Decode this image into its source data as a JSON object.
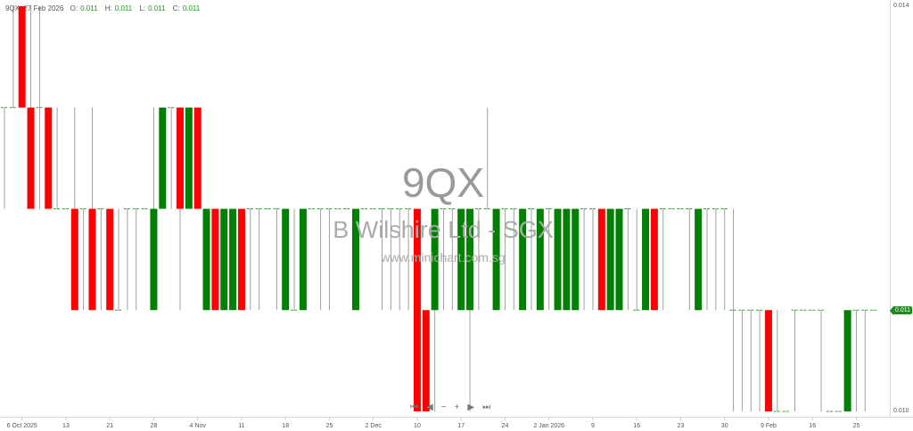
{
  "header": {
    "symbol": "9QX",
    "date": "27 Feb 2026",
    "o_label": "O:",
    "o": "0.011",
    "h_label": "H:",
    "h": "0.011",
    "l_label": "L:",
    "l": "0.011",
    "c_label": "C:",
    "c": "0.011"
  },
  "watermark": {
    "code": "9QX",
    "name": "B Wilshire Ltd - SGX",
    "site": "www.minichart.com.sg"
  },
  "navigation": {
    "first": "⏮",
    "prev": "◀",
    "zoom_out": "−",
    "zoom_in": "+",
    "next": "▶",
    "last": "⏭"
  },
  "colors": {
    "up": "#008000",
    "down": "#ff0000",
    "wick": "#a0a0a0",
    "flat": "#3aa03a",
    "last_price_tag": "#1f8a1f"
  },
  "last_price_tag": "0.011",
  "chart_data": {
    "type": "candlestick",
    "ylim": [
      0.01,
      0.014
    ],
    "y_ticks": [
      "0.014",
      "0.010"
    ],
    "x_ticks": [
      {
        "bar": 2,
        "label": "6 Oct 2025"
      },
      {
        "bar": 7,
        "label": "13"
      },
      {
        "bar": 12,
        "label": "21"
      },
      {
        "bar": 17,
        "label": "28"
      },
      {
        "bar": 22,
        "label": "4 Nov"
      },
      {
        "bar": 27,
        "label": "11"
      },
      {
        "bar": 32,
        "label": "18"
      },
      {
        "bar": 37,
        "label": "25"
      },
      {
        "bar": 42,
        "label": "2 Dec"
      },
      {
        "bar": 47,
        "label": "10"
      },
      {
        "bar": 52,
        "label": "17"
      },
      {
        "bar": 57,
        "label": "24"
      },
      {
        "bar": 62,
        "label": "2 Jan 2026"
      },
      {
        "bar": 67,
        "label": "9"
      },
      {
        "bar": 72,
        "label": "16"
      },
      {
        "bar": 77,
        "label": "23"
      },
      {
        "bar": 82,
        "label": "30"
      },
      {
        "bar": 87,
        "label": "9 Feb"
      },
      {
        "bar": 92,
        "label": "16"
      },
      {
        "bar": 97,
        "label": "25"
      }
    ],
    "ohlc": [
      [
        0.013,
        0.013,
        0.012,
        0.013
      ],
      [
        0.013,
        0.014,
        0.013,
        0.013
      ],
      [
        0.014,
        0.014,
        0.013,
        0.013
      ],
      [
        0.013,
        0.014,
        0.012,
        0.012
      ],
      [
        0.013,
        0.014,
        0.012,
        0.013
      ],
      [
        0.013,
        0.013,
        0.012,
        0.012
      ],
      [
        0.012,
        0.013,
        0.012,
        0.012
      ],
      [
        0.012,
        0.012,
        0.012,
        0.012
      ],
      [
        0.012,
        0.013,
        0.011,
        0.011
      ],
      [
        0.012,
        0.012,
        0.011,
        0.012
      ],
      [
        0.012,
        0.013,
        0.011,
        0.011
      ],
      [
        0.012,
        0.012,
        0.011,
        0.012
      ],
      [
        0.012,
        0.012,
        0.011,
        0.011
      ],
      [
        0.011,
        0.012,
        0.011,
        0.011
      ],
      [
        0.012,
        0.012,
        0.011,
        0.012
      ],
      [
        0.012,
        0.012,
        0.011,
        0.012
      ],
      [
        0.012,
        0.012,
        0.012,
        0.012
      ],
      [
        0.011,
        0.013,
        0.011,
        0.012
      ],
      [
        0.012,
        0.013,
        0.012,
        0.013
      ],
      [
        0.013,
        0.013,
        0.012,
        0.013
      ],
      [
        0.013,
        0.013,
        0.011,
        0.012
      ],
      [
        0.012,
        0.013,
        0.012,
        0.013
      ],
      [
        0.013,
        0.013,
        0.012,
        0.012
      ],
      [
        0.011,
        0.012,
        0.011,
        0.012
      ],
      [
        0.012,
        0.012,
        0.011,
        0.011
      ],
      [
        0.011,
        0.012,
        0.011,
        0.012
      ],
      [
        0.011,
        0.012,
        0.011,
        0.012
      ],
      [
        0.012,
        0.012,
        0.011,
        0.011
      ],
      [
        0.012,
        0.012,
        0.011,
        0.012
      ],
      [
        0.012,
        0.012,
        0.011,
        0.012
      ],
      [
        0.012,
        0.012,
        0.012,
        0.012
      ],
      [
        0.012,
        0.012,
        0.011,
        0.012
      ],
      [
        0.011,
        0.012,
        0.011,
        0.012
      ],
      [
        0.011,
        0.012,
        0.011,
        0.011
      ],
      [
        0.011,
        0.012,
        0.011,
        0.012
      ],
      [
        0.012,
        0.012,
        0.012,
        0.012
      ],
      [
        0.012,
        0.012,
        0.011,
        0.012
      ],
      [
        0.012,
        0.012,
        0.011,
        0.012
      ],
      [
        0.012,
        0.012,
        0.012,
        0.012
      ],
      [
        0.012,
        0.012,
        0.012,
        0.012
      ],
      [
        0.011,
        0.012,
        0.011,
        0.012
      ],
      [
        0.012,
        0.012,
        0.012,
        0.012
      ],
      [
        0.012,
        0.012,
        0.012,
        0.012
      ],
      [
        0.012,
        0.012,
        0.011,
        0.012
      ],
      [
        0.012,
        0.012,
        0.011,
        0.012
      ],
      [
        0.012,
        0.012,
        0.011,
        0.012
      ],
      [
        0.012,
        0.012,
        0.011,
        0.012
      ],
      [
        0.012,
        0.012,
        0.01,
        0.01
      ],
      [
        0.011,
        0.011,
        0.01,
        0.01
      ],
      [
        0.011,
        0.012,
        0.01,
        0.012
      ],
      [
        0.012,
        0.012,
        0.011,
        0.012
      ],
      [
        0.012,
        0.012,
        0.011,
        0.012
      ],
      [
        0.011,
        0.012,
        0.011,
        0.012
      ],
      [
        0.011,
        0.012,
        0.01,
        0.012
      ],
      [
        0.012,
        0.012,
        0.011,
        0.012
      ],
      [
        0.012,
        0.013,
        0.012,
        0.012
      ],
      [
        0.011,
        0.012,
        0.011,
        0.012
      ],
      [
        0.012,
        0.012,
        0.011,
        0.012
      ],
      [
        0.012,
        0.012,
        0.011,
        0.012
      ],
      [
        0.011,
        0.012,
        0.011,
        0.012
      ],
      [
        0.012,
        0.012,
        0.011,
        0.012
      ],
      [
        0.011,
        0.012,
        0.011,
        0.012
      ],
      [
        0.012,
        0.012,
        0.011,
        0.012
      ],
      [
        0.011,
        0.012,
        0.011,
        0.012
      ],
      [
        0.011,
        0.012,
        0.011,
        0.012
      ],
      [
        0.011,
        0.012,
        0.011,
        0.012
      ],
      [
        0.012,
        0.012,
        0.011,
        0.012
      ],
      [
        0.012,
        0.012,
        0.011,
        0.012
      ],
      [
        0.012,
        0.012,
        0.011,
        0.011
      ],
      [
        0.011,
        0.012,
        0.011,
        0.012
      ],
      [
        0.011,
        0.012,
        0.011,
        0.012
      ],
      [
        0.012,
        0.012,
        0.011,
        0.012
      ],
      [
        0.011,
        0.012,
        0.011,
        0.011
      ],
      [
        0.011,
        0.012,
        0.011,
        0.012
      ],
      [
        0.012,
        0.012,
        0.011,
        0.011
      ],
      [
        0.012,
        0.012,
        0.011,
        0.012
      ],
      [
        0.012,
        0.012,
        0.012,
        0.012
      ],
      [
        0.012,
        0.012,
        0.012,
        0.012
      ],
      [
        0.012,
        0.012,
        0.011,
        0.012
      ],
      [
        0.011,
        0.012,
        0.011,
        0.012
      ],
      [
        0.012,
        0.012,
        0.011,
        0.012
      ],
      [
        0.012,
        0.012,
        0.011,
        0.012
      ],
      [
        0.012,
        0.012,
        0.011,
        0.012
      ],
      [
        0.011,
        0.012,
        0.01,
        0.011
      ],
      [
        0.011,
        0.011,
        0.01,
        0.011
      ],
      [
        0.011,
        0.011,
        0.01,
        0.011
      ],
      [
        0.011,
        0.011,
        0.01,
        0.011
      ],
      [
        0.011,
        0.011,
        0.01,
        0.01
      ],
      [
        0.01,
        0.011,
        0.01,
        0.01
      ],
      [
        0.01,
        0.01,
        0.01,
        0.01
      ],
      [
        0.011,
        0.011,
        0.01,
        0.011
      ],
      [
        0.011,
        0.011,
        0.011,
        0.011
      ],
      [
        0.011,
        0.011,
        0.011,
        0.011
      ],
      [
        0.011,
        0.011,
        0.01,
        0.011
      ],
      [
        0.01,
        0.01,
        0.01,
        0.01
      ],
      [
        0.01,
        0.01,
        0.01,
        0.01
      ],
      [
        0.01,
        0.011,
        0.01,
        0.011
      ],
      [
        0.011,
        0.011,
        0.01,
        0.011
      ],
      [
        0.011,
        0.011,
        0.01,
        0.011
      ],
      [
        0.011,
        0.011,
        0.011,
        0.011
      ]
    ]
  }
}
